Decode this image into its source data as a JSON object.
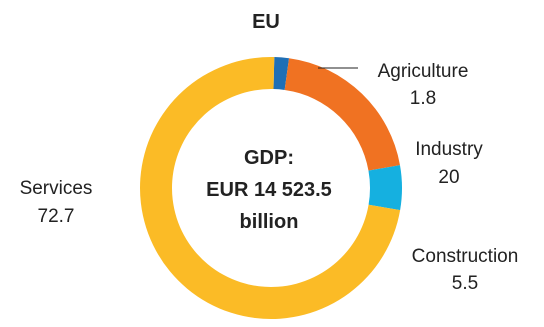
{
  "chart_data": {
    "type": "pie",
    "title": "EU",
    "center_text": [
      "GDP:",
      "EUR 14 523.5",
      "billion"
    ],
    "slices": [
      {
        "name": "Agriculture",
        "value": 1.8,
        "color": "#1f6fb5"
      },
      {
        "name": "Industry",
        "value": 20.0,
        "color": "#f07222"
      },
      {
        "name": "Construction",
        "value": 5.5,
        "color": "#15b0e0"
      },
      {
        "name": "Services",
        "value": 72.7,
        "color": "#fbbb26"
      }
    ]
  }
}
